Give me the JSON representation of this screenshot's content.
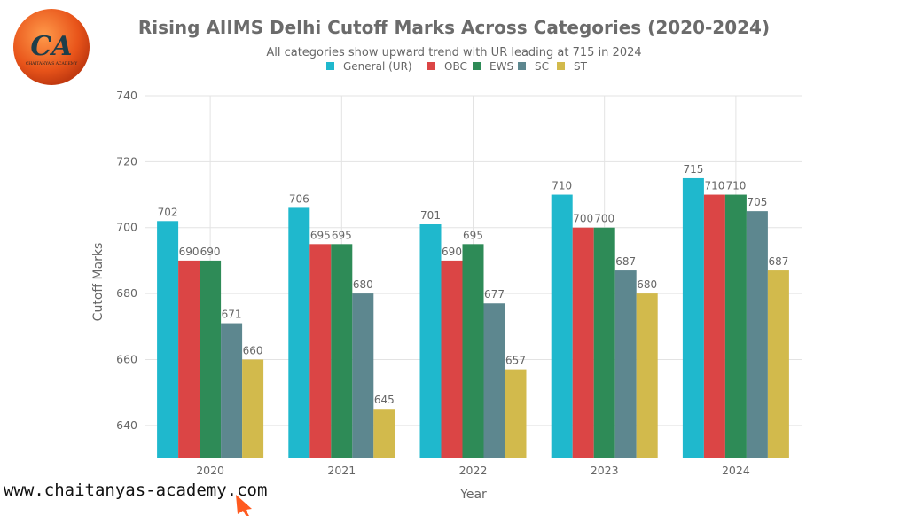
{
  "logo": {
    "text": "CA",
    "subtext": "CHAITANYA'S ACADEMY"
  },
  "watermark": "www.chaitanyas-academy.com",
  "chart_data": {
    "type": "bar",
    "title": "Rising AIIMS Delhi Cutoff Marks Across Categories (2020-2024)",
    "subtitle": "All categories show upward trend with UR leading at 715 in 2024",
    "xlabel": "Year",
    "ylabel": "Cutoff Marks",
    "ylim": [
      630,
      740
    ],
    "yticks": [
      640,
      660,
      680,
      700,
      720,
      740
    ],
    "grid": true,
    "legend_position": "top-center",
    "categories": [
      "2020",
      "2021",
      "2022",
      "2023",
      "2024"
    ],
    "series": [
      {
        "name": "General (UR)",
        "color": "#1fb8cd",
        "values": [
          702,
          706,
          701,
          710,
          715
        ]
      },
      {
        "name": "OBC",
        "color": "#db4545",
        "values": [
          690,
          695,
          690,
          700,
          710
        ]
      },
      {
        "name": "EWS",
        "color": "#2e8b57",
        "values": [
          690,
          695,
          695,
          700,
          710
        ]
      },
      {
        "name": "SC",
        "color": "#5d878f",
        "values": [
          671,
          680,
          677,
          687,
          705
        ]
      },
      {
        "name": "ST",
        "color": "#d2ba4c",
        "values": [
          660,
          645,
          657,
          680,
          687
        ]
      }
    ]
  }
}
